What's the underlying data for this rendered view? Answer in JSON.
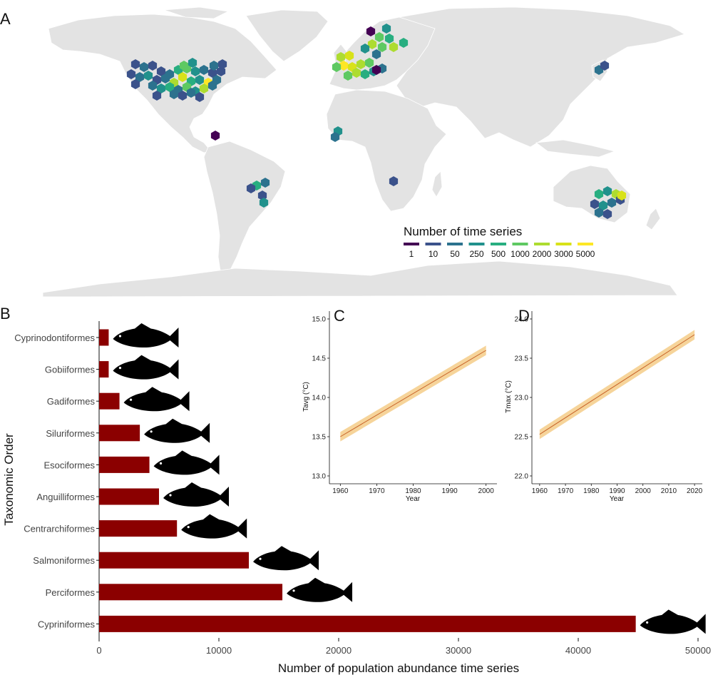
{
  "panels": {
    "a": "A",
    "b": "B",
    "c": "C",
    "d": "D"
  },
  "map": {
    "legend": {
      "title": "Number of time series",
      "levels": [
        "1",
        "10",
        "50",
        "250",
        "500",
        "1000",
        "2000",
        "3000",
        "5000"
      ],
      "colors": [
        "#440154",
        "#3b528b",
        "#2c728e",
        "#21918c",
        "#28ae80",
        "#5ec962",
        "#addc30",
        "#d8e219",
        "#fde725"
      ]
    },
    "land_color": "#e3e3e3",
    "border_color": "#ffffff"
  },
  "chart_data": [
    {
      "type": "bar",
      "orientation": "horizontal",
      "categories": [
        "Cyprinodontiformes",
        "Gobiiformes",
        "Gadiformes",
        "Siluriformes",
        "Esociformes",
        "Anguilliformes",
        "Centrarchiformes",
        "Salmoniformes",
        "Perciformes",
        "Cypriniformes"
      ],
      "values": [
        800,
        800,
        1700,
        3400,
        4200,
        5000,
        6500,
        12500,
        15300,
        44800
      ],
      "xlabel": "Number of population abundance time series",
      "ylabel": "Taxonomic Order",
      "xlim": [
        0,
        50000
      ],
      "xticks": [
        "0",
        "10000",
        "20000",
        "30000",
        "40000",
        "50000"
      ],
      "bar_color": "#8b0000"
    },
    {
      "type": "line",
      "x": [
        1960,
        2000
      ],
      "y": [
        13.5,
        14.6
      ],
      "ci_halfwidth": 0.06,
      "xlabel": "Year",
      "ylabel": "Tavg (°C)",
      "xlim": [
        1957,
        2003
      ],
      "ylim": [
        12.9,
        15.1
      ],
      "xticks": [
        "1960",
        "1970",
        "1980",
        "1990",
        "2000"
      ],
      "yticks": [
        "13.0",
        "13.5",
        "14.0",
        "14.5",
        "15.0"
      ],
      "line_color": "#c8642a",
      "ribbon_color": "#f6d49a"
    },
    {
      "type": "line",
      "x": [
        1960,
        2020
      ],
      "y": [
        22.53,
        23.8
      ],
      "ci_halfwidth": 0.06,
      "xlabel": "Year",
      "ylabel": "Tmax (°C)",
      "xlim": [
        1957,
        2023
      ],
      "ylim": [
        21.9,
        24.1
      ],
      "xticks": [
        "1960",
        "1970",
        "1980",
        "1990",
        "2000",
        "2010",
        "2020"
      ],
      "yticks": [
        "22.0",
        "22.5",
        "23.0",
        "23.5",
        "24.0"
      ],
      "line_color": "#c8642a",
      "ribbon_color": "#f6d49a"
    }
  ]
}
